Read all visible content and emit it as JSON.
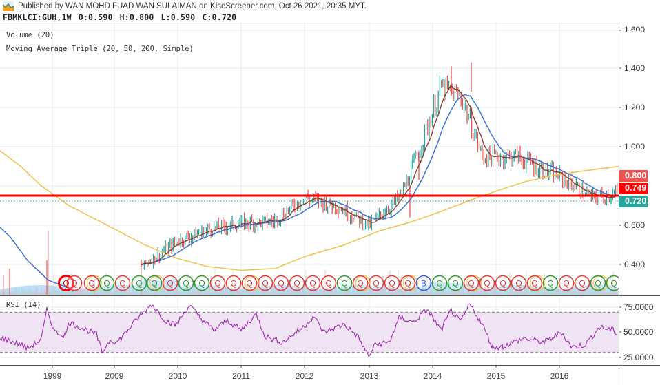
{
  "header": {
    "published_line": "Published by WAN MOHD FUAD WAN SULAIMAN on KlseScreener.com, Oct 26 2021, 20:35 MYT.",
    "symbol": "FBMKLCI:GUH,1W",
    "open": "O:0.590",
    "high": "H:0.800",
    "low": "L:0.590",
    "close": "C:0.720",
    "logo_icon": "area-chart-logo-icon"
  },
  "legend": {
    "volume": "Volume (20)",
    "ma": "Moving Average Triple (20, 50, 200, Simple)",
    "rsi": "RSI (14)"
  },
  "price_axis": {
    "ticks": [
      "1.600",
      "1.400",
      "1.200",
      "1.000",
      "0.600",
      "0.400"
    ],
    "badges": [
      {
        "label": "0.800",
        "color": "#ef5350"
      },
      {
        "label": "0.749",
        "color": "#ff0000"
      },
      {
        "label": "0.720",
        "color": "#26a69a"
      }
    ]
  },
  "rsi_axis": {
    "ticks": [
      "75.0000",
      "50.0000",
      "25.0000"
    ]
  },
  "time_axis": {
    "labels": [
      "1999",
      "2009",
      "2010",
      "2011",
      "2012",
      "2013",
      "2014",
      "2015",
      "2016"
    ]
  },
  "colors": {
    "up": "#26a69a",
    "down": "#ef5350",
    "ma20": "#8b3a2a",
    "ma50": "#3b6fd6",
    "ma200": "#f0c24a",
    "rsi": "#9c27b0",
    "rsi_band": "#f0e3f3",
    "hline": "#ff0000",
    "volume": "#90caf9"
  },
  "chart_data": {
    "type": "candlestick",
    "title": "FBMKLCI:GUH, 1W",
    "ohlc_last": {
      "open": 0.59,
      "high": 0.8,
      "low": 0.59,
      "close": 0.72
    },
    "x_labels": [
      "1999",
      "2009",
      "2010",
      "2011",
      "2012",
      "2013",
      "2014",
      "2015",
      "2016"
    ],
    "y_ticks": [
      0.4,
      0.6,
      0.8,
      1.0,
      1.2,
      1.4,
      1.6
    ],
    "ylim": [
      0.28,
      1.62
    ],
    "price_path_approx": {
      "x": [
        "2009-07",
        "2010-01",
        "2010-07",
        "2011-01",
        "2011-07",
        "2012-01",
        "2012-07",
        "2012-12",
        "2013-06",
        "2013-10",
        "2014-03",
        "2014-07",
        "2014-10",
        "2015-03",
        "2015-09",
        "2016-01",
        "2016-06",
        "2016-10"
      ],
      "close": [
        0.4,
        0.52,
        0.58,
        0.61,
        0.62,
        0.74,
        0.7,
        0.6,
        0.75,
        0.95,
        1.3,
        1.25,
        0.95,
        0.95,
        0.88,
        0.85,
        0.74,
        0.76
      ]
    },
    "series": [
      {
        "name": "MA 20",
        "color": "#8b3a2a"
      },
      {
        "name": "MA 50",
        "color": "#3b6fd6"
      },
      {
        "name": "MA 200",
        "color": "#f0c24a"
      }
    ],
    "horizontal_lines": [
      {
        "value": 0.749,
        "color": "#ff0000",
        "style": "solid"
      },
      {
        "value": 0.72,
        "color": "#26a69a",
        "style": "dotted"
      }
    ],
    "price_badges": [
      0.8,
      0.749,
      0.72
    ],
    "subcharts": [
      {
        "type": "line",
        "name": "RSI (14)",
        "ylim": [
          18,
          82
        ],
        "y_ticks": [
          25,
          50,
          75
        ],
        "bands": [
          30,
          70
        ],
        "approx_values": {
          "x": [
            "1999",
            "2009",
            "2009-07",
            "2010",
            "2011",
            "2012",
            "2012-12",
            "2013-10",
            "2014-04",
            "2015",
            "2016",
            "2016-10"
          ],
          "rsi": [
            45,
            30,
            75,
            60,
            52,
            65,
            25,
            72,
            78,
            33,
            38,
            55
          ]
        }
      }
    ],
    "markers": "Q (quarterly result) circle markers along bottom in red/green/yellow, one 'B' marker near 2014"
  }
}
